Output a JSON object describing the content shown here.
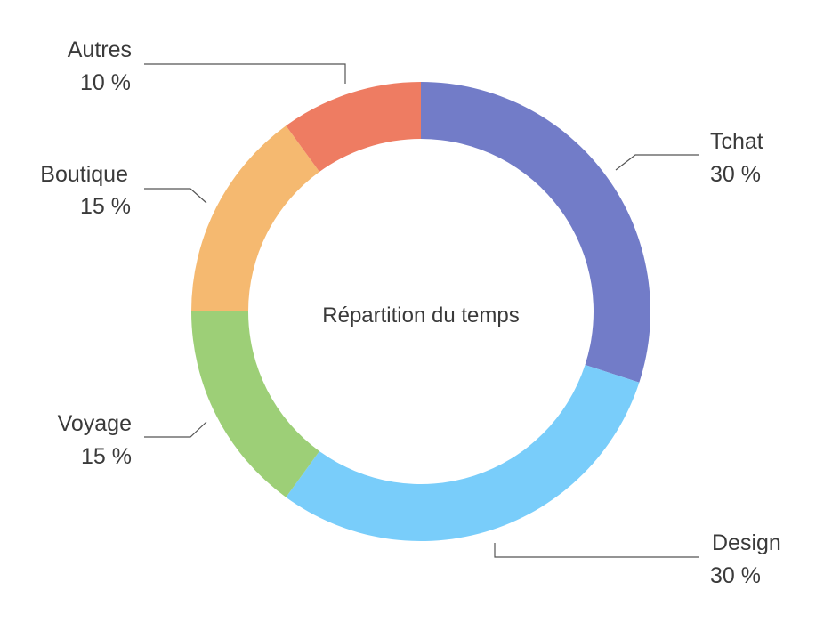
{
  "chart_data": {
    "type": "pie",
    "variant": "donut",
    "title": "Répartition du temps",
    "slices": [
      {
        "label": "Tchat",
        "value": 30,
        "value_label": "30 %",
        "color": "#727cc8"
      },
      {
        "label": "Design",
        "value": 30,
        "value_label": "30 %",
        "color": "#79cdfa"
      },
      {
        "label": "Voyage",
        "value": 15,
        "value_label": "15 %",
        "color": "#9dcf77"
      },
      {
        "label": "Boutique",
        "value": 15,
        "value_label": "15 %",
        "color": "#f5b970"
      },
      {
        "label": "Autres",
        "value": 10,
        "value_label": "10 %",
        "color": "#ee7c62"
      }
    ],
    "start_angle": "top (12 o'clock)",
    "direction": "clockwise",
    "legend": "none (labels with leader lines)"
  }
}
